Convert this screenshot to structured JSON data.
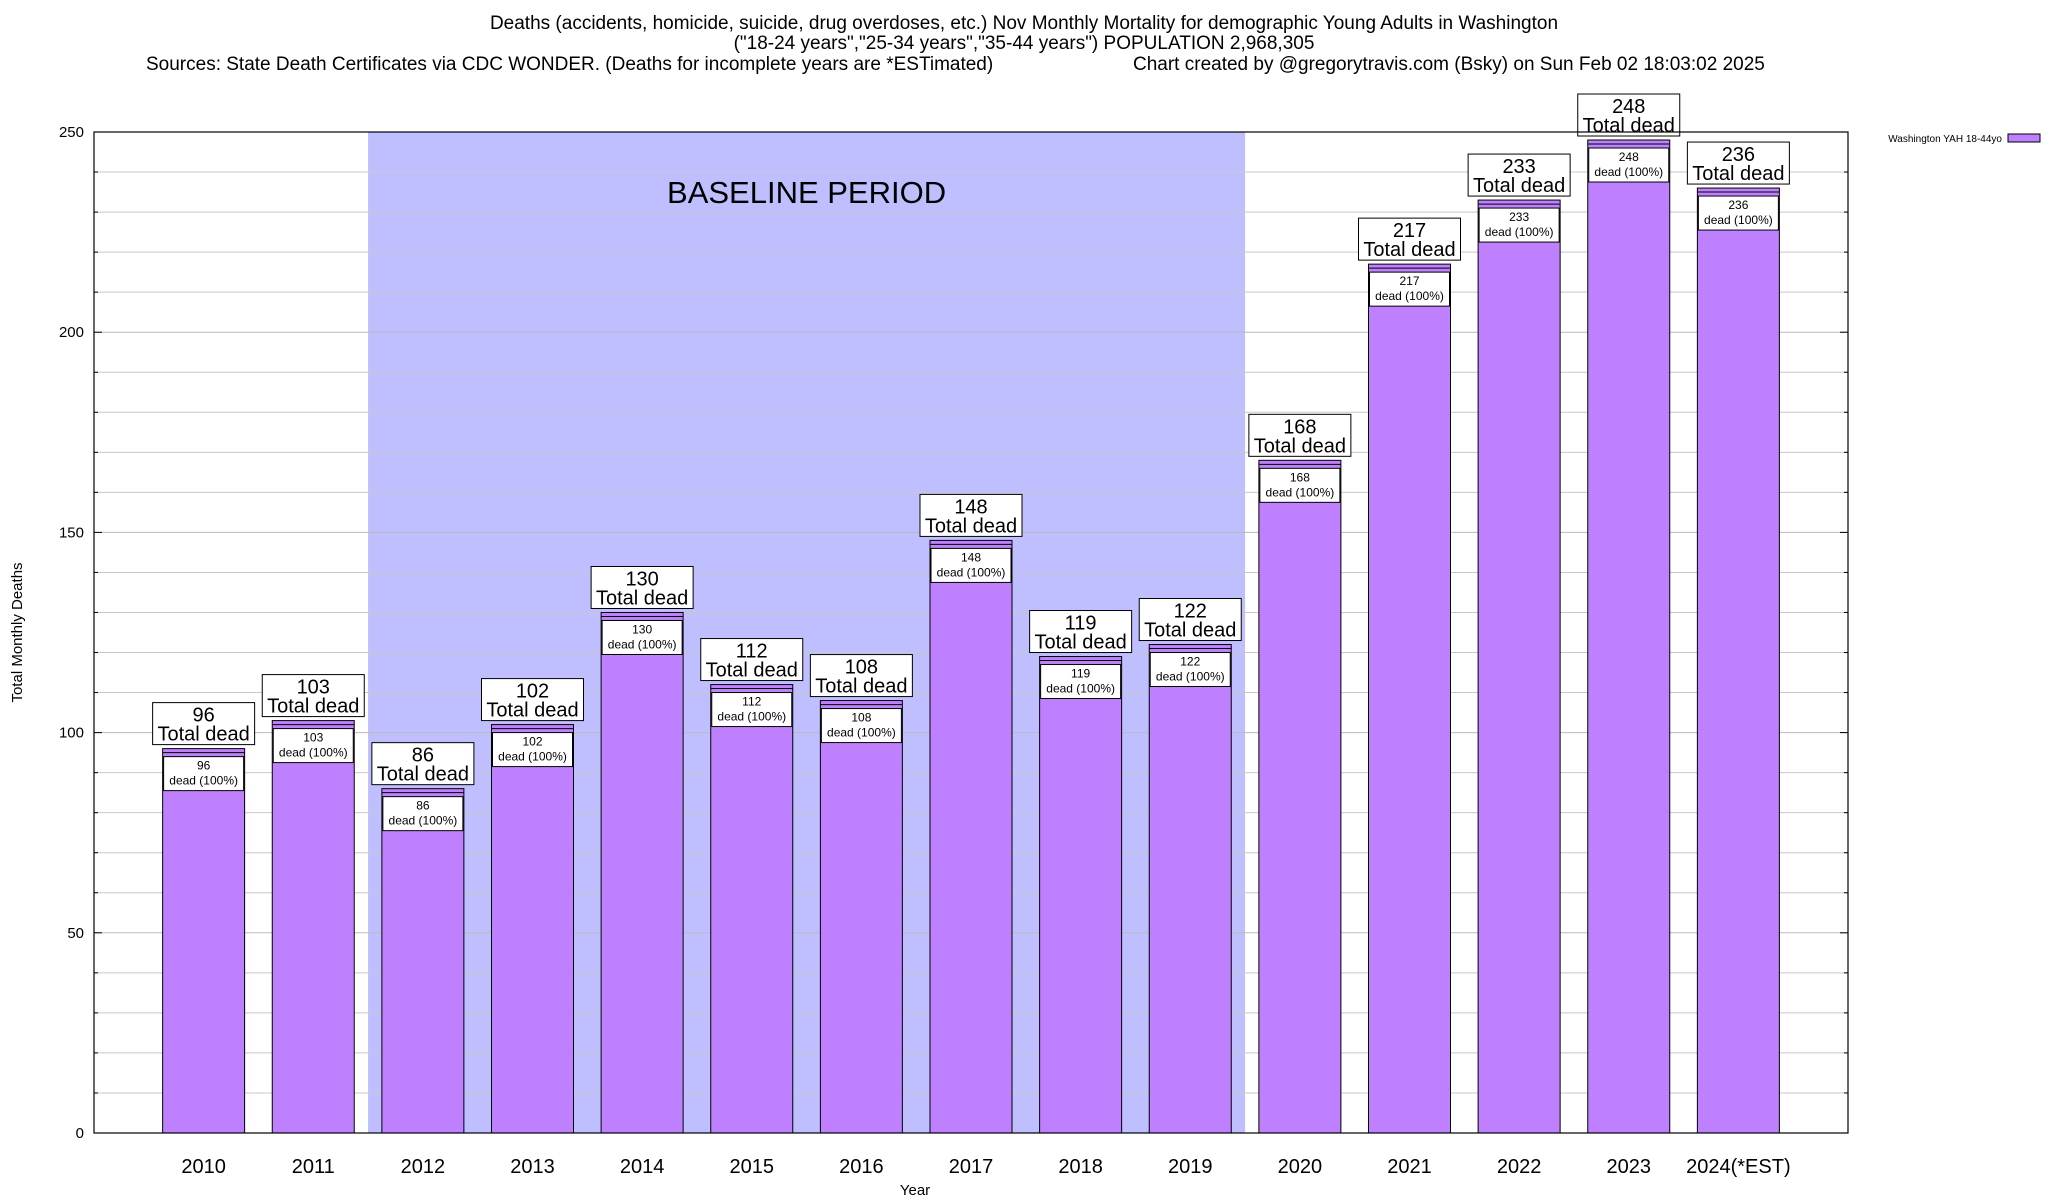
{
  "header": {
    "title_line1": "Deaths (accidents, homicide, suicide, drug overdoses, etc.) Nov Monthly Mortality for demographic Young Adults in Washington",
    "title_line2": "(\"18-24 years\",\"25-34 years\",\"35-44 years\") POPULATION 2,968,305",
    "sources": "Sources: State Death Certificates via CDC WONDER. (Deaths for incomplete years are *ESTimated)",
    "credit": "Chart created by @gregorytravis.com (Bsky) on Sun Feb 02 18:03:02 2025"
  },
  "chart_data": {
    "type": "bar",
    "categories": [
      "2010",
      "2011",
      "2012",
      "2013",
      "2014",
      "2015",
      "2016",
      "2017",
      "2018",
      "2019",
      "2020",
      "2021",
      "2022",
      "2023",
      "2024(*EST)"
    ],
    "series": [
      {
        "name": "Washington YAH 18-44yo",
        "values": [
          96,
          103,
          86,
          102,
          130,
          112,
          108,
          148,
          119,
          122,
          168,
          217,
          233,
          248,
          236
        ]
      }
    ],
    "xlabel": "Year",
    "ylabel": "Total Monthly Deaths",
    "ylim": [
      0,
      250
    ],
    "yticks": [
      0,
      50,
      100,
      150,
      200,
      250
    ],
    "grid": true,
    "legend": "top-right",
    "total_label": "Total dead",
    "segment_label": "dead (100%)",
    "baseline_label": "BASELINE PERIOD",
    "baseline_range": [
      "2012",
      "2019"
    ],
    "colors": {
      "bar": "#bf80ff",
      "baseline": "#bfbfff",
      "grid": "#c8c8c8"
    }
  }
}
